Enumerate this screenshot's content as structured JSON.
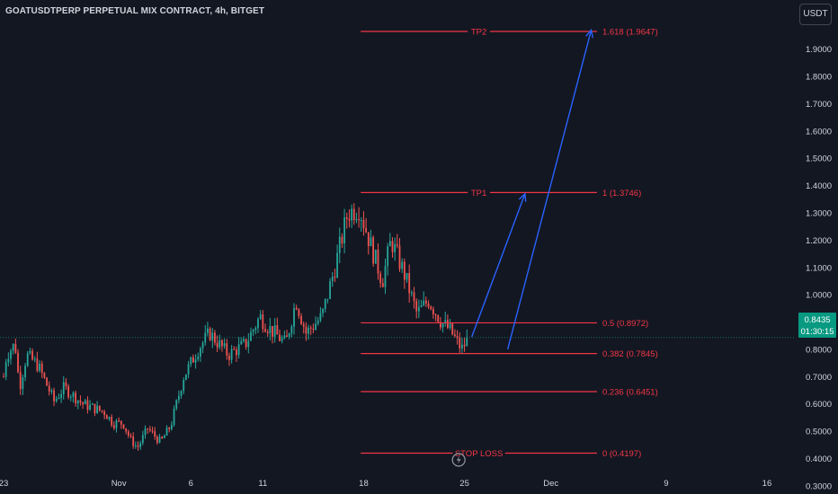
{
  "symbol_title": "GOATUSDTPERP PERPETUAL MIX CONTRACT, 4h, BITGET",
  "currency_button": "USDT",
  "last_price": "0.8435",
  "countdown": "01:30:15",
  "colors": {
    "background": "#131722",
    "up_candle": "#26a69a",
    "down_candle": "#ef5350",
    "fib_line": "#f23645",
    "arrow": "#2962ff",
    "price_line": "#089981",
    "axis_text": "#d1d4dc"
  },
  "icons": {
    "replay": "lightning-icon"
  },
  "chart_data": {
    "type": "candlestick",
    "title": "GOATUSDTPERP PERPETUAL MIX CONTRACT, 4h, BITGET",
    "ylim": [
      0.27,
      2.08
    ],
    "y_ticks": [
      {
        "value": 0.3,
        "label": "0.3000"
      },
      {
        "value": 0.4,
        "label": "0.4000"
      },
      {
        "value": 0.5,
        "label": "0.5000"
      },
      {
        "value": 0.6,
        "label": "0.6000"
      },
      {
        "value": 0.7,
        "label": "0.7000"
      },
      {
        "value": 0.8,
        "label": "0.8000"
      },
      {
        "value": 0.9,
        "label": "0.9000"
      },
      {
        "value": 1.0,
        "label": "1.0000"
      },
      {
        "value": 1.1,
        "label": "1.1000"
      },
      {
        "value": 1.2,
        "label": "1.2000"
      },
      {
        "value": 1.3,
        "label": "1.3000"
      },
      {
        "value": 1.4,
        "label": "1.4000"
      },
      {
        "value": 1.5,
        "label": "1.5000"
      },
      {
        "value": 1.6,
        "label": "1.6000"
      },
      {
        "value": 1.7,
        "label": "1.7000"
      },
      {
        "value": 1.8,
        "label": "1.8000"
      },
      {
        "value": 1.9,
        "label": "1.9000"
      }
    ],
    "x_ticks": [
      {
        "day": -7,
        "label": "23"
      },
      {
        "day": 1,
        "label": "Nov"
      },
      {
        "day": 6,
        "label": "6"
      },
      {
        "day": 11,
        "label": "11"
      },
      {
        "day": 18,
        "label": "18"
      },
      {
        "day": 25,
        "label": "25"
      },
      {
        "day": 31,
        "label": "Dec"
      },
      {
        "day": 39,
        "label": "9"
      },
      {
        "day": 46,
        "label": "16"
      }
    ],
    "xlim_days": [
      -7.25,
      48
    ],
    "last_price": 0.8435,
    "path_days": [
      -7.0,
      -6.8,
      -6.2,
      -5.9,
      -5.4,
      -4.6,
      -3.5,
      -2.8,
      -1.5,
      0.0,
      0.6,
      1.3,
      1.8,
      2.3,
      3.0,
      3.9,
      4.6,
      5.5,
      6.5,
      7.3,
      8.6,
      9.8,
      10.8,
      11.4,
      12.6,
      13.3,
      14.0,
      15.1,
      16.0,
      16.9,
      17.7,
      18.5,
      19.3,
      19.9,
      20.8,
      21.7,
      22.5,
      23.4,
      24.0,
      24.8,
      25.3
    ],
    "path_prices": [
      0.7,
      0.78,
      0.82,
      0.66,
      0.78,
      0.74,
      0.61,
      0.66,
      0.6,
      0.57,
      0.53,
      0.53,
      0.47,
      0.44,
      0.51,
      0.46,
      0.52,
      0.7,
      0.8,
      0.86,
      0.78,
      0.82,
      0.92,
      0.88,
      0.82,
      0.98,
      0.86,
      0.92,
      1.1,
      1.3,
      1.32,
      1.18,
      1.05,
      1.2,
      1.08,
      0.93,
      0.98,
      0.9,
      0.87,
      0.8,
      0.8435
    ],
    "fib_levels": [
      {
        "ratio": "1.618",
        "value": 1.9647,
        "label": "1.618 (1.9647)",
        "tag": "TP2"
      },
      {
        "ratio": "1",
        "value": 1.3746,
        "label": "1 (1.3746)",
        "tag": "TP1"
      },
      {
        "ratio": "0.5",
        "value": 0.8972,
        "label": "0.5 (0.8972)",
        "tag": ""
      },
      {
        "ratio": "0.382",
        "value": 0.7845,
        "label": "0.382 (0.7845)",
        "tag": ""
      },
      {
        "ratio": "0.236",
        "value": 0.6451,
        "label": "0.236 (0.6451)",
        "tag": ""
      },
      {
        "ratio": "0",
        "value": 0.4197,
        "label": "0 (0.4197)",
        "tag": "STOP LOSS"
      }
    ],
    "fib_range_days": [
      17.8,
      34.2
    ],
    "arrows": [
      {
        "from_day": 25.5,
        "from_value": 0.845,
        "to_day": 29.2,
        "to_value": 1.37
      },
      {
        "from_day": 28.0,
        "from_value": 0.8,
        "to_day": 33.8,
        "to_value": 1.97
      }
    ],
    "grid": false,
    "legend": "none"
  }
}
